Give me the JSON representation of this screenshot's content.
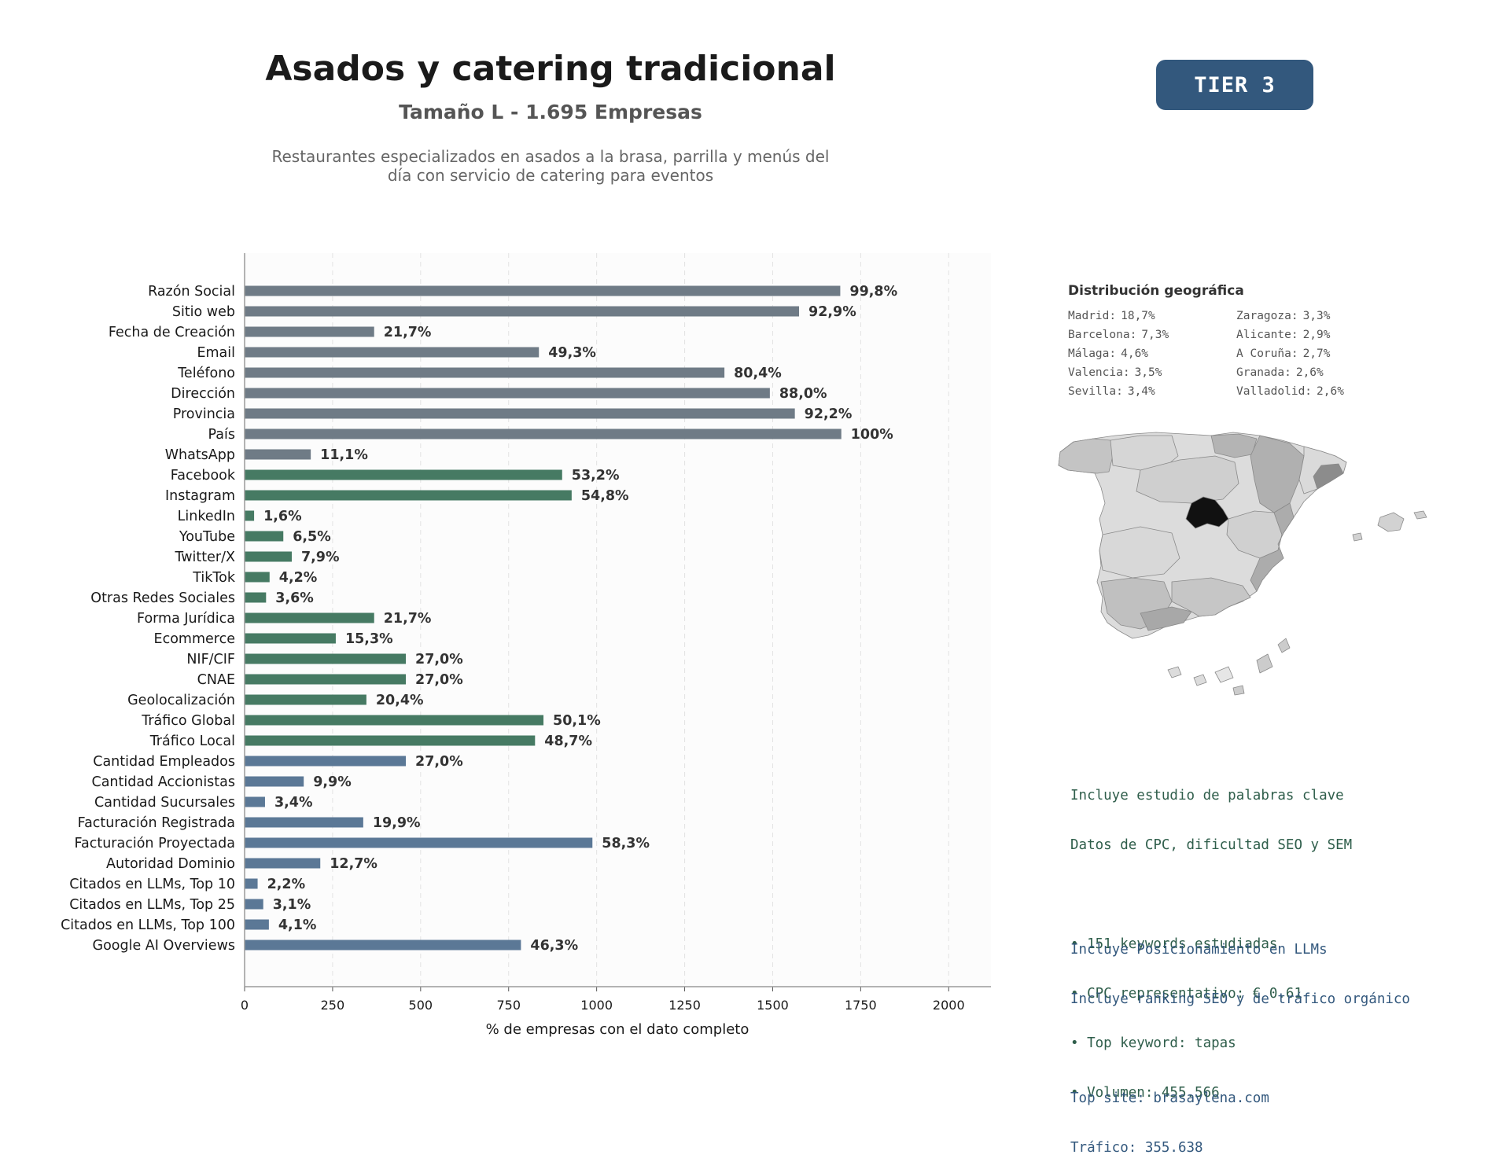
{
  "header": {
    "title": "Asados y catering tradicional",
    "subtitle": "Tamaño L - 1.695 Empresas",
    "description_line1": "Restaurantes especializados en asados a la brasa, parrilla y menús del",
    "description_line2": "día con servicio de catering para eventos",
    "tier": "TIER 3"
  },
  "colors": {
    "gray": "#6f7b86",
    "green": "#467a63",
    "blue": "#5b7896",
    "tier_badge": "#33587d",
    "green_text": "#2f5e4b",
    "blue_text": "#33587d"
  },
  "chart_data": {
    "type": "bar",
    "orientation": "horizontal",
    "xlabel": "% de empresas con el dato completo",
    "xlim": [
      0,
      2120
    ],
    "xticks": [
      0,
      250,
      500,
      750,
      1000,
      1250,
      1500,
      1750,
      2000
    ],
    "xtick_labels": [
      "0",
      "250",
      "500",
      "750",
      "1000",
      "1250",
      "1500",
      "1750",
      "2000"
    ],
    "grid": "vertical dashed",
    "legend": "none",
    "categories": [
      "Razón Social",
      "Sitio web",
      "Fecha de Creación",
      "Email",
      "Teléfono",
      "Dirección",
      "Provincia",
      "País",
      "WhatsApp",
      "Facebook",
      "Instagram",
      "LinkedIn",
      "YouTube",
      "Twitter/X",
      "TikTok",
      "Otras Redes Sociales",
      "Forma Jurídica",
      "Ecommerce",
      "NIF/CIF",
      "CNAE",
      "Geolocalización",
      "Tráfico Global",
      "Tráfico Local",
      "Cantidad Empleados",
      "Cantidad Accionistas",
      "Cantidad Sucursales",
      "Facturación Registrada",
      "Facturación Proyectada",
      "Autoridad Dominio",
      "Citados en LLMs, Top 10",
      "Citados en LLMs, Top 25",
      "Citados en LLMs, Top 100",
      "Google AI Overviews"
    ],
    "values": [
      1692,
      1575,
      368,
      836,
      1363,
      1492,
      1563,
      1695,
      188,
      902,
      929,
      27,
      110,
      134,
      71,
      61,
      368,
      259,
      458,
      458,
      346,
      849,
      825,
      458,
      168,
      58,
      337,
      988,
      215,
      37,
      53,
      69,
      785
    ],
    "data_labels": [
      "99,8%",
      "92,9%",
      "21,7%",
      "49,3%",
      "80,4%",
      "88,0%",
      "92,2%",
      "100%",
      "11,1%",
      "53,2%",
      "54,8%",
      "1,6%",
      "6,5%",
      "7,9%",
      "4,2%",
      "3,6%",
      "21,7%",
      "15,3%",
      "27,0%",
      "27,0%",
      "20,4%",
      "50,1%",
      "48,7%",
      "27,0%",
      "9,9%",
      "3,4%",
      "19,9%",
      "58,3%",
      "12,7%",
      "2,2%",
      "3,1%",
      "4,1%",
      "46,3%"
    ],
    "color_groups": [
      "gray",
      "gray",
      "gray",
      "gray",
      "gray",
      "gray",
      "gray",
      "gray",
      "gray",
      "green",
      "green",
      "green",
      "green",
      "green",
      "green",
      "green",
      "green",
      "green",
      "green",
      "green",
      "green",
      "green",
      "green",
      "blue",
      "blue",
      "blue",
      "blue",
      "blue",
      "blue",
      "blue",
      "blue",
      "blue",
      "blue"
    ]
  },
  "geo": {
    "title": "Distribución geográfica",
    "items": [
      {
        "name": "Madrid:",
        "value": "18,7%"
      },
      {
        "name": "Zaragoza:",
        "value": "3,3%"
      },
      {
        "name": "Barcelona:",
        "value": "7,3%"
      },
      {
        "name": "Alicante:",
        "value": "2,9%"
      },
      {
        "name": "Málaga:",
        "value": "4,6%"
      },
      {
        "name": "A Coruña:",
        "value": "2,7%"
      },
      {
        "name": "Valencia:",
        "value": "3,5%"
      },
      {
        "name": "Granada:",
        "value": "2,6%"
      },
      {
        "name": "Sevilla:",
        "value": "3,4%"
      },
      {
        "name": "Valladolid:",
        "value": "2,6%"
      }
    ]
  },
  "seo_info": {
    "line1": "Incluye estudio de palabras clave",
    "line2": "Datos de CPC, dificultad SEO y SEM",
    "bullet1": "• 151 keywords estudiadas",
    "bullet2": "• CPC representativo: € 0.61",
    "bullet3": "• Top keyword: tapas",
    "bullet4": "• Volumen: 455.566"
  },
  "llm_info": {
    "line1": "Incluye Posicionamiento en LLMs",
    "line2": "Incluye ranking SEO y de tráfico orgánico",
    "top_site": "Top site: brasaylena.com",
    "traffic": "Tráfico: 355.638"
  }
}
